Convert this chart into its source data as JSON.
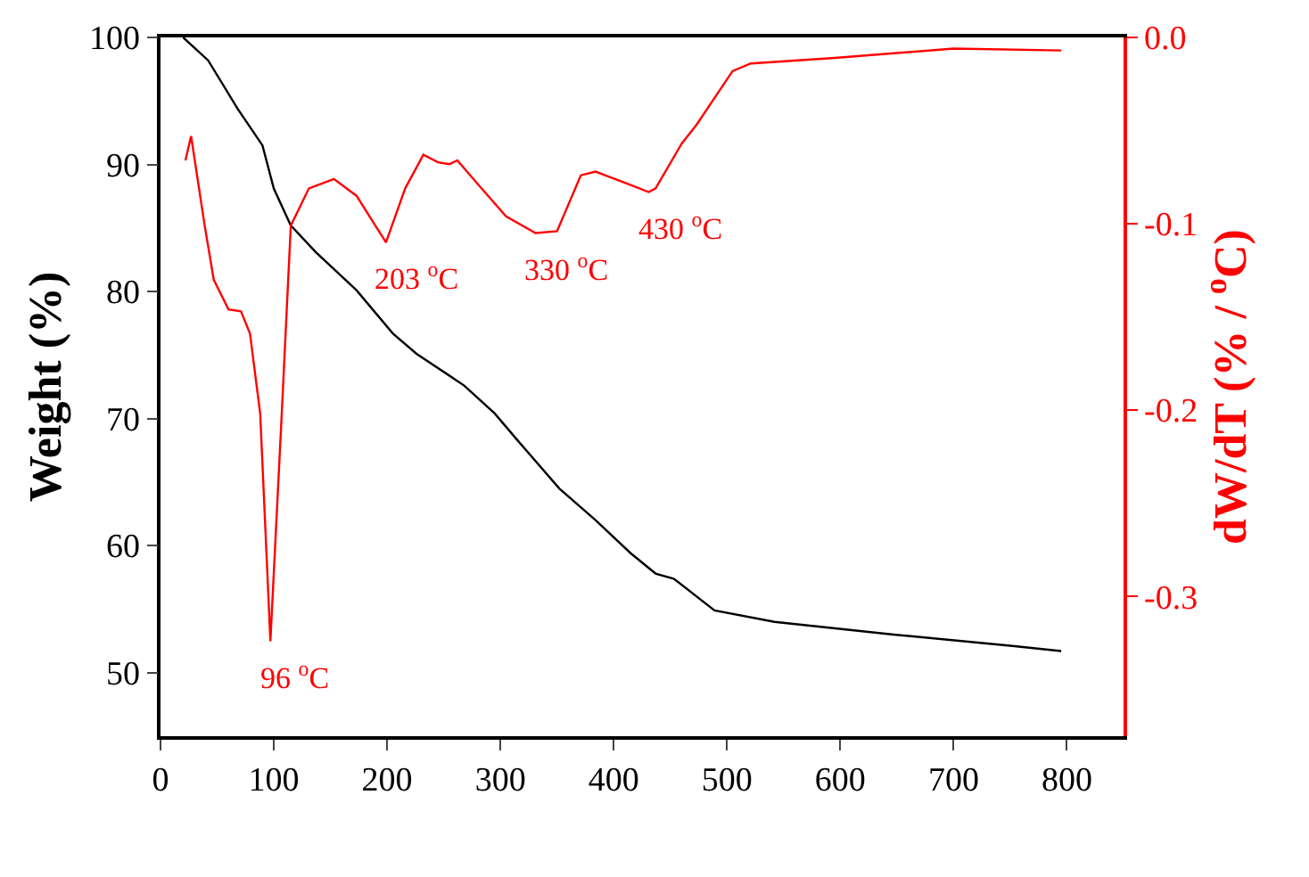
{
  "chart_data": {
    "type": "line",
    "xlabel": null,
    "ylabel": "Weight (%)",
    "y2label": "dW/dT (% / $^{o}$C)",
    "xlim": [
      0,
      850
    ],
    "xticks": [
      0,
      100,
      200,
      300,
      400,
      500,
      600,
      700,
      800
    ],
    "ylim": [
      45,
      100
    ],
    "yticks": [
      50,
      60,
      70,
      80,
      90,
      100
    ],
    "y2lim": [
      -0.375,
      0
    ],
    "y2ticks": [
      {
        "value": 0,
        "label": "0.0"
      },
      -0.1,
      -0.2,
      -0.3
    ],
    "marker": "none",
    "line_style": "solid",
    "series": [
      {
        "color": "#000000",
        "x": [
          20,
          42,
          68,
          90,
          100,
          115,
          137,
          173,
          205,
          226,
          268,
          295,
          315,
          352,
          384,
          415,
          437,
          453,
          489,
          542,
          647,
          752,
          795
        ],
        "values": [
          100,
          98.2,
          94.4,
          91.5,
          88.1,
          85.2,
          83.1,
          80.1,
          76.7,
          75.1,
          72.6,
          70.4,
          68.3,
          64.5,
          62.0,
          59.4,
          57.8,
          57.4,
          54.9,
          54.0,
          53.0,
          52.1,
          51.7
        ]
      },
      {
        "color": "#ff0000",
        "axis": "y2",
        "x": [
          22,
          27,
          39,
          47,
          60,
          71,
          79,
          88,
          97,
          107,
          115,
          131,
          153,
          173,
          199,
          216,
          232,
          245,
          255,
          262,
          279,
          305,
          331,
          350,
          371,
          384,
          410,
          431,
          437,
          460,
          473,
          505,
          521,
          595,
          700,
          795
        ],
        "values": [
          -0.066,
          -0.053,
          -0.101,
          -0.13,
          -0.146,
          -0.147,
          -0.159,
          -0.202,
          -0.324,
          -0.202,
          -0.101,
          -0.081,
          -0.076,
          -0.085,
          -0.11,
          -0.081,
          -0.063,
          -0.067,
          -0.068,
          -0.066,
          -0.078,
          -0.096,
          -0.105,
          -0.104,
          -0.074,
          -0.072,
          -0.078,
          -0.083,
          -0.081,
          -0.057,
          -0.047,
          -0.018,
          -0.014,
          -0.011,
          -0.006,
          -0.007
        ]
      }
    ],
    "annotations": [
      "96 $^{o}$C",
      "203 $^{o}$C",
      "330 $^{o}$C",
      "430 $^{o}$C"
    ]
  }
}
